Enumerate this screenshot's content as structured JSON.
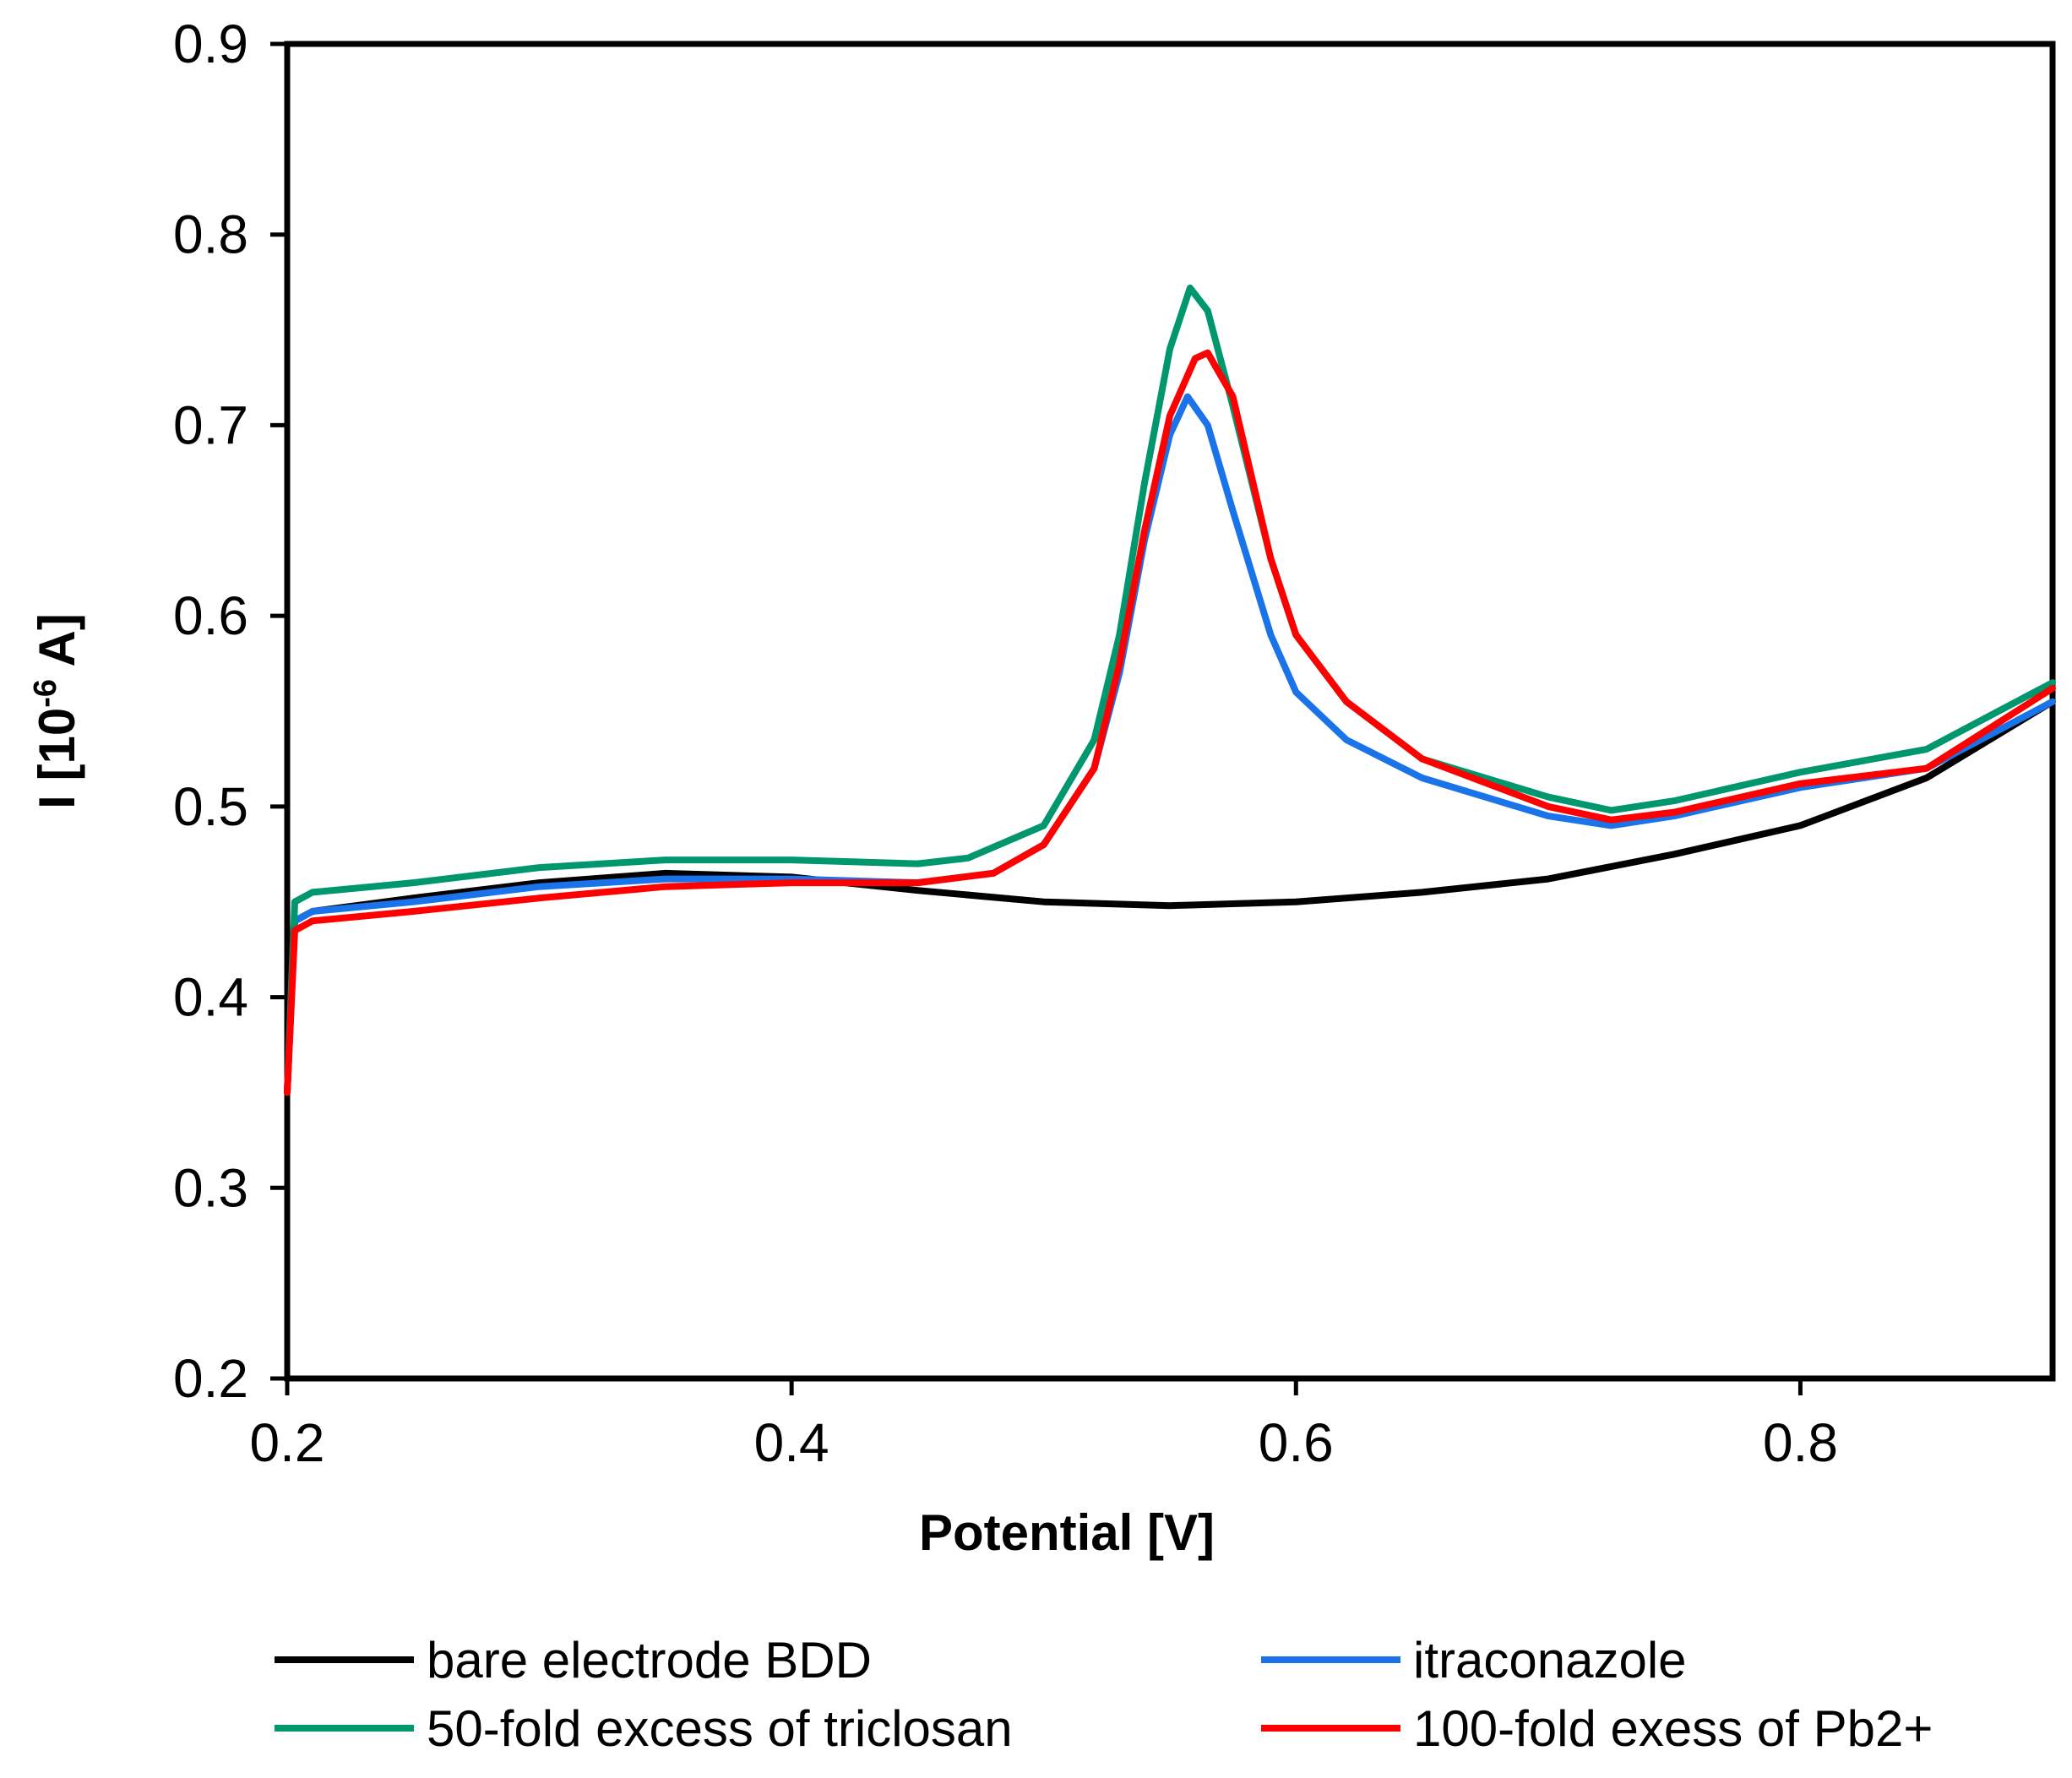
{
  "chart_data": {
    "type": "line",
    "title": "",
    "xlabel": "Potential [V]",
    "ylabel": {
      "prefix": "I [10",
      "superscript": "-6",
      "suffix": " A]"
    },
    "xlim": [
      0.2,
      0.9
    ],
    "ylim": [
      0.2,
      0.9
    ],
    "x_ticks": [
      0.2,
      0.4,
      0.6,
      0.8
    ],
    "x_tick_labels": [
      "0.2",
      "0.4",
      "0.6",
      "0.8"
    ],
    "y_ticks": [
      0.2,
      0.3,
      0.4,
      0.5,
      0.6,
      0.7,
      0.8,
      0.9
    ],
    "y_tick_labels": [
      "0.2",
      "0.3",
      "0.4",
      "0.5",
      "0.6",
      "0.7",
      "0.8",
      "0.9"
    ],
    "grid": false,
    "legend_position": "bottom",
    "series": [
      {
        "name": "bare electrode BDD",
        "color": "#000000",
        "points": [
          [
            0.2,
            0.35
          ],
          [
            0.203,
            0.44
          ],
          [
            0.21,
            0.445
          ],
          [
            0.25,
            0.452
          ],
          [
            0.3,
            0.46
          ],
          [
            0.35,
            0.465
          ],
          [
            0.4,
            0.463
          ],
          [
            0.45,
            0.456
          ],
          [
            0.5,
            0.45
          ],
          [
            0.55,
            0.448
          ],
          [
            0.6,
            0.45
          ],
          [
            0.65,
            0.455
          ],
          [
            0.7,
            0.462
          ],
          [
            0.75,
            0.475
          ],
          [
            0.8,
            0.49
          ],
          [
            0.85,
            0.515
          ],
          [
            0.9,
            0.555
          ]
        ]
      },
      {
        "name": "itraconazole",
        "color": "#1a73e8",
        "points": [
          [
            0.2,
            0.35
          ],
          [
            0.203,
            0.44
          ],
          [
            0.21,
            0.445
          ],
          [
            0.25,
            0.45
          ],
          [
            0.3,
            0.458
          ],
          [
            0.35,
            0.462
          ],
          [
            0.4,
            0.462
          ],
          [
            0.45,
            0.46
          ],
          [
            0.48,
            0.465
          ],
          [
            0.5,
            0.48
          ],
          [
            0.52,
            0.52
          ],
          [
            0.53,
            0.57
          ],
          [
            0.54,
            0.64
          ],
          [
            0.55,
            0.695
          ],
          [
            0.557,
            0.715
          ],
          [
            0.565,
            0.7
          ],
          [
            0.575,
            0.655
          ],
          [
            0.59,
            0.59
          ],
          [
            0.6,
            0.56
          ],
          [
            0.62,
            0.535
          ],
          [
            0.65,
            0.515
          ],
          [
            0.7,
            0.495
          ],
          [
            0.725,
            0.49
          ],
          [
            0.75,
            0.495
          ],
          [
            0.8,
            0.51
          ],
          [
            0.85,
            0.52
          ],
          [
            0.9,
            0.555
          ]
        ]
      },
      {
        "name": "50-fold excess of triclosan",
        "color": "#00966e",
        "points": [
          [
            0.2,
            0.35
          ],
          [
            0.203,
            0.45
          ],
          [
            0.21,
            0.455
          ],
          [
            0.25,
            0.46
          ],
          [
            0.3,
            0.468
          ],
          [
            0.35,
            0.472
          ],
          [
            0.4,
            0.472
          ],
          [
            0.45,
            0.47
          ],
          [
            0.47,
            0.473
          ],
          [
            0.5,
            0.49
          ],
          [
            0.52,
            0.535
          ],
          [
            0.53,
            0.59
          ],
          [
            0.54,
            0.67
          ],
          [
            0.55,
            0.74
          ],
          [
            0.558,
            0.772
          ],
          [
            0.565,
            0.76
          ],
          [
            0.575,
            0.71
          ],
          [
            0.59,
            0.63
          ],
          [
            0.6,
            0.59
          ],
          [
            0.62,
            0.555
          ],
          [
            0.65,
            0.525
          ],
          [
            0.7,
            0.505
          ],
          [
            0.725,
            0.498
          ],
          [
            0.75,
            0.503
          ],
          [
            0.8,
            0.518
          ],
          [
            0.85,
            0.53
          ],
          [
            0.9,
            0.565
          ]
        ]
      },
      {
        "name": "100-fold exess of Pb2+",
        "color": "#ff0000",
        "points": [
          [
            0.2,
            0.35
          ],
          [
            0.203,
            0.435
          ],
          [
            0.21,
            0.44
          ],
          [
            0.25,
            0.445
          ],
          [
            0.3,
            0.452
          ],
          [
            0.35,
            0.458
          ],
          [
            0.4,
            0.46
          ],
          [
            0.45,
            0.46
          ],
          [
            0.48,
            0.465
          ],
          [
            0.5,
            0.48
          ],
          [
            0.52,
            0.52
          ],
          [
            0.53,
            0.575
          ],
          [
            0.54,
            0.645
          ],
          [
            0.55,
            0.705
          ],
          [
            0.56,
            0.735
          ],
          [
            0.565,
            0.738
          ],
          [
            0.575,
            0.715
          ],
          [
            0.59,
            0.63
          ],
          [
            0.6,
            0.59
          ],
          [
            0.62,
            0.555
          ],
          [
            0.65,
            0.525
          ],
          [
            0.7,
            0.5
          ],
          [
            0.725,
            0.493
          ],
          [
            0.75,
            0.497
          ],
          [
            0.8,
            0.512
          ],
          [
            0.85,
            0.52
          ],
          [
            0.9,
            0.562
          ]
        ]
      }
    ]
  }
}
